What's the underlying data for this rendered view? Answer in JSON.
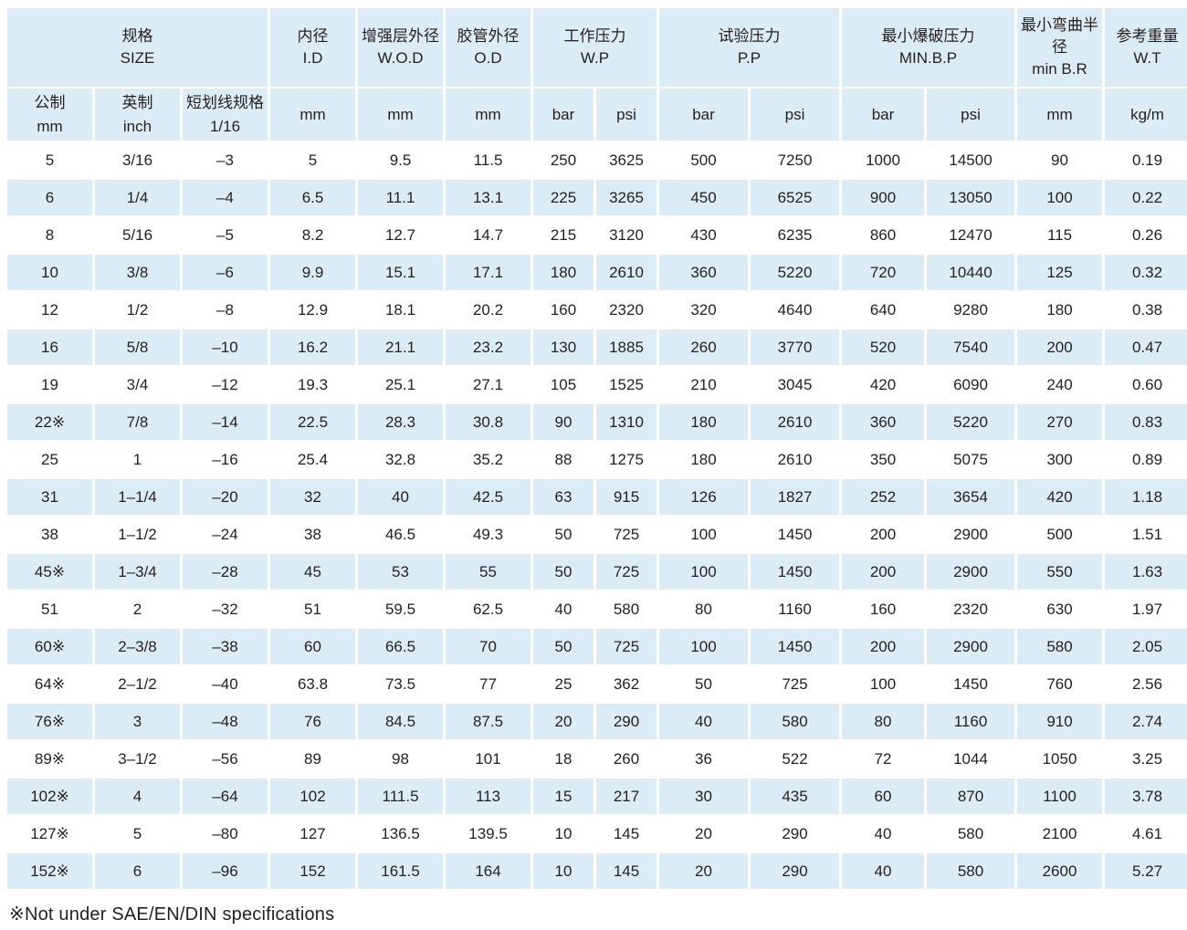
{
  "header": {
    "size_cn": "规格",
    "size_en": "SIZE",
    "id_cn": "内径",
    "id_en": "I.D",
    "wod_cn": "增强层外径",
    "wod_en": "W.O.D",
    "od_cn": "胶管外径",
    "od_en": "O.D",
    "wp_cn": "工作压力",
    "wp_en": "W.P",
    "pp_cn": "试验压力",
    "pp_en": "P.P",
    "bp_cn": "最小爆破压力",
    "bp_en": "MIN.B.P",
    "br_cn": "最小弯曲半径",
    "br_en": "min B.R",
    "wt_cn": "参考重量",
    "wt_en": "W.T"
  },
  "units": {
    "metric_cn": "公制",
    "metric_en": "mm",
    "inch_cn": "英制",
    "inch_en": "inch",
    "dash_cn": "短划线规格",
    "dash_en": "1/16",
    "id": "mm",
    "wod": "mm",
    "od": "mm",
    "wp_bar": "bar",
    "wp_psi": "psi",
    "pp_bar": "bar",
    "pp_psi": "psi",
    "bp_bar": "bar",
    "bp_psi": "psi",
    "br": "mm",
    "wt": "kg/m"
  },
  "rows": [
    [
      "5",
      "3/16",
      "–3",
      "5",
      "9.5",
      "11.5",
      "250",
      "3625",
      "500",
      "7250",
      "1000",
      "14500",
      "90",
      "0.19"
    ],
    [
      "6",
      "1/4",
      "–4",
      "6.5",
      "11.1",
      "13.1",
      "225",
      "3265",
      "450",
      "6525",
      "900",
      "13050",
      "100",
      "0.22"
    ],
    [
      "8",
      "5/16",
      "–5",
      "8.2",
      "12.7",
      "14.7",
      "215",
      "3120",
      "430",
      "6235",
      "860",
      "12470",
      "115",
      "0.26"
    ],
    [
      "10",
      "3/8",
      "–6",
      "9.9",
      "15.1",
      "17.1",
      "180",
      "2610",
      "360",
      "5220",
      "720",
      "10440",
      "125",
      "0.32"
    ],
    [
      "12",
      "1/2",
      "–8",
      "12.9",
      "18.1",
      "20.2",
      "160",
      "2320",
      "320",
      "4640",
      "640",
      "9280",
      "180",
      "0.38"
    ],
    [
      "16",
      "5/8",
      "–10",
      "16.2",
      "21.1",
      "23.2",
      "130",
      "1885",
      "260",
      "3770",
      "520",
      "7540",
      "200",
      "0.47"
    ],
    [
      "19",
      "3/4",
      "–12",
      "19.3",
      "25.1",
      "27.1",
      "105",
      "1525",
      "210",
      "3045",
      "420",
      "6090",
      "240",
      "0.60"
    ],
    [
      "22※",
      "7/8",
      "–14",
      "22.5",
      "28.3",
      "30.8",
      "90",
      "1310",
      "180",
      "2610",
      "360",
      "5220",
      "270",
      "0.83"
    ],
    [
      "25",
      "1",
      "–16",
      "25.4",
      "32.8",
      "35.2",
      "88",
      "1275",
      "180",
      "2610",
      "350",
      "5075",
      "300",
      "0.89"
    ],
    [
      "31",
      "1–1/4",
      "–20",
      "32",
      "40",
      "42.5",
      "63",
      "915",
      "126",
      "1827",
      "252",
      "3654",
      "420",
      "1.18"
    ],
    [
      "38",
      "1–1/2",
      "–24",
      "38",
      "46.5",
      "49.3",
      "50",
      "725",
      "100",
      "1450",
      "200",
      "2900",
      "500",
      "1.51"
    ],
    [
      "45※",
      "1–3/4",
      "–28",
      "45",
      "53",
      "55",
      "50",
      "725",
      "100",
      "1450",
      "200",
      "2900",
      "550",
      "1.63"
    ],
    [
      "51",
      "2",
      "–32",
      "51",
      "59.5",
      "62.5",
      "40",
      "580",
      "80",
      "1160",
      "160",
      "2320",
      "630",
      "1.97"
    ],
    [
      "60※",
      "2–3/8",
      "–38",
      "60",
      "66.5",
      "70",
      "50",
      "725",
      "100",
      "1450",
      "200",
      "2900",
      "580",
      "2.05"
    ],
    [
      "64※",
      "2–1/2",
      "–40",
      "63.8",
      "73.5",
      "77",
      "25",
      "362",
      "50",
      "725",
      "100",
      "1450",
      "760",
      "2.56"
    ],
    [
      "76※",
      "3",
      "–48",
      "76",
      "84.5",
      "87.5",
      "20",
      "290",
      "40",
      "580",
      "80",
      "1160",
      "910",
      "2.74"
    ],
    [
      "89※",
      "3–1/2",
      "–56",
      "89",
      "98",
      "101",
      "18",
      "260",
      "36",
      "522",
      "72",
      "1044",
      "1050",
      "3.25"
    ],
    [
      "102※",
      "4",
      "–64",
      "102",
      "111.5",
      "113",
      "15",
      "217",
      "30",
      "435",
      "60",
      "870",
      "1100",
      "3.78"
    ],
    [
      "127※",
      "5",
      "–80",
      "127",
      "136.5",
      "139.5",
      "10",
      "145",
      "20",
      "290",
      "40",
      "580",
      "2100",
      "4.61"
    ],
    [
      "152※",
      "6",
      "–96",
      "152",
      "161.5",
      "164",
      "10",
      "145",
      "20",
      "290",
      "40",
      "580",
      "2600",
      "5.27"
    ]
  ],
  "footnote": "※Not under SAE/EN/DIN specifications",
  "colors": {
    "header_bg": "#dcecf6",
    "shade_bg": "#dcecf6",
    "text": "#231f20"
  }
}
